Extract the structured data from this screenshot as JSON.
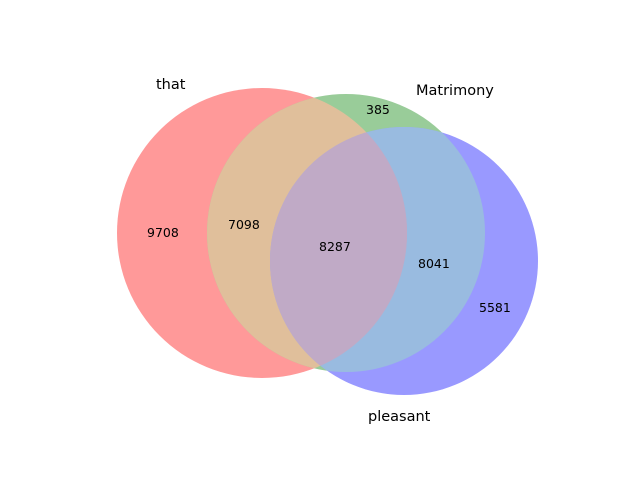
{
  "diagram": {
    "type": "venn3",
    "sets": [
      {
        "id": "A",
        "name": "that",
        "color": "#ff9999"
      },
      {
        "id": "B",
        "name": "Matrimony",
        "color": "#99cc99"
      },
      {
        "id": "C",
        "name": "pleasant",
        "color": "#9999ff"
      }
    ],
    "regions": [
      {
        "sets": "A",
        "value": "9708"
      },
      {
        "sets": "B",
        "value": "385"
      },
      {
        "sets": "AB",
        "value": "7098"
      },
      {
        "sets": "ABC",
        "value": "8287"
      },
      {
        "sets": "BC",
        "value": "8041"
      },
      {
        "sets": "C",
        "value": "5581"
      }
    ],
    "colors": {
      "A_only": "#ff9999",
      "B_only": "#99cc99",
      "C_only": "#9999ff",
      "AB": "#e0bf9b",
      "BC": "#99bbe0",
      "ABC": "#c0aac6"
    }
  }
}
